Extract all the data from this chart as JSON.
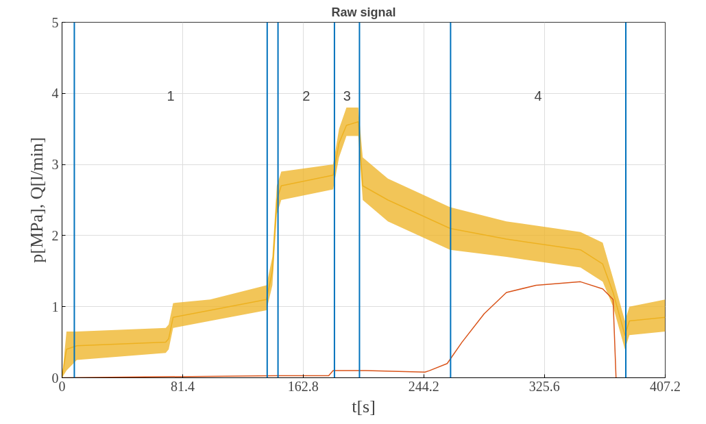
{
  "chart_data": {
    "type": "line",
    "title": "Raw signal",
    "xlabel": "t[s]",
    "ylabel": "p[MPa], Q[l/min]",
    "xlim": [
      0,
      407.2
    ],
    "ylim": [
      0,
      5
    ],
    "xticks": [
      0,
      81.4,
      162.8,
      244.2,
      325.6,
      407.2
    ],
    "yticks": [
      0,
      1,
      2,
      3,
      4,
      5
    ],
    "grid": true,
    "series": [
      {
        "color": "#edb120",
        "x": [
          0,
          3,
          10,
          70,
          72,
          75,
          100,
          138,
          142,
          145,
          148,
          183,
          187,
          192,
          200,
          203,
          220,
          262,
          300,
          350,
          365,
          372,
          380,
          383,
          407.2
        ],
        "values": [
          0,
          0.4,
          0.45,
          0.5,
          0.55,
          0.85,
          0.95,
          1.1,
          1.5,
          2.5,
          2.7,
          2.85,
          3.3,
          3.55,
          3.6,
          2.7,
          2.5,
          2.1,
          1.95,
          1.8,
          1.6,
          1.2,
          0.6,
          0.8,
          0.85
        ],
        "lower": [
          0,
          0.1,
          0.25,
          0.35,
          0.4,
          0.7,
          0.8,
          0.95,
          1.3,
          2.3,
          2.5,
          2.65,
          3.1,
          3.4,
          3.4,
          2.5,
          2.2,
          1.8,
          1.7,
          1.55,
          1.35,
          1.0,
          0.4,
          0.6,
          0.65
        ],
        "upper": [
          0,
          0.65,
          0.65,
          0.7,
          0.75,
          1.05,
          1.1,
          1.3,
          1.7,
          2.7,
          2.9,
          3.0,
          3.5,
          3.8,
          3.8,
          3.1,
          2.8,
          2.4,
          2.2,
          2.05,
          1.9,
          1.4,
          0.8,
          1.0,
          1.1
        ]
      },
      {
        "color": "#d95319",
        "x": [
          0,
          145,
          180,
          183,
          205,
          245,
          248,
          260,
          270,
          285,
          300,
          320,
          350,
          365,
          372,
          374
        ],
        "values": [
          0,
          0.03,
          0.03,
          0.1,
          0.1,
          0.08,
          0.1,
          0.2,
          0.5,
          0.9,
          1.2,
          1.3,
          1.35,
          1.25,
          1.1,
          0
        ]
      }
    ],
    "ref_lines": [
      {
        "axis": "x",
        "value": 8.3,
        "color": "#0072bd"
      },
      {
        "axis": "x",
        "value": 138.5,
        "color": "#0072bd"
      },
      {
        "axis": "x",
        "value": 145.8,
        "color": "#0072bd"
      },
      {
        "axis": "x",
        "value": 183.9,
        "color": "#0072bd"
      },
      {
        "axis": "x",
        "value": 200.8,
        "color": "#0072bd"
      },
      {
        "axis": "x",
        "value": 262.3,
        "color": "#0072bd"
      },
      {
        "axis": "x",
        "value": 380.6,
        "color": "#0072bd"
      }
    ],
    "annotations": [
      "1",
      "2",
      "3",
      "4"
    ]
  }
}
